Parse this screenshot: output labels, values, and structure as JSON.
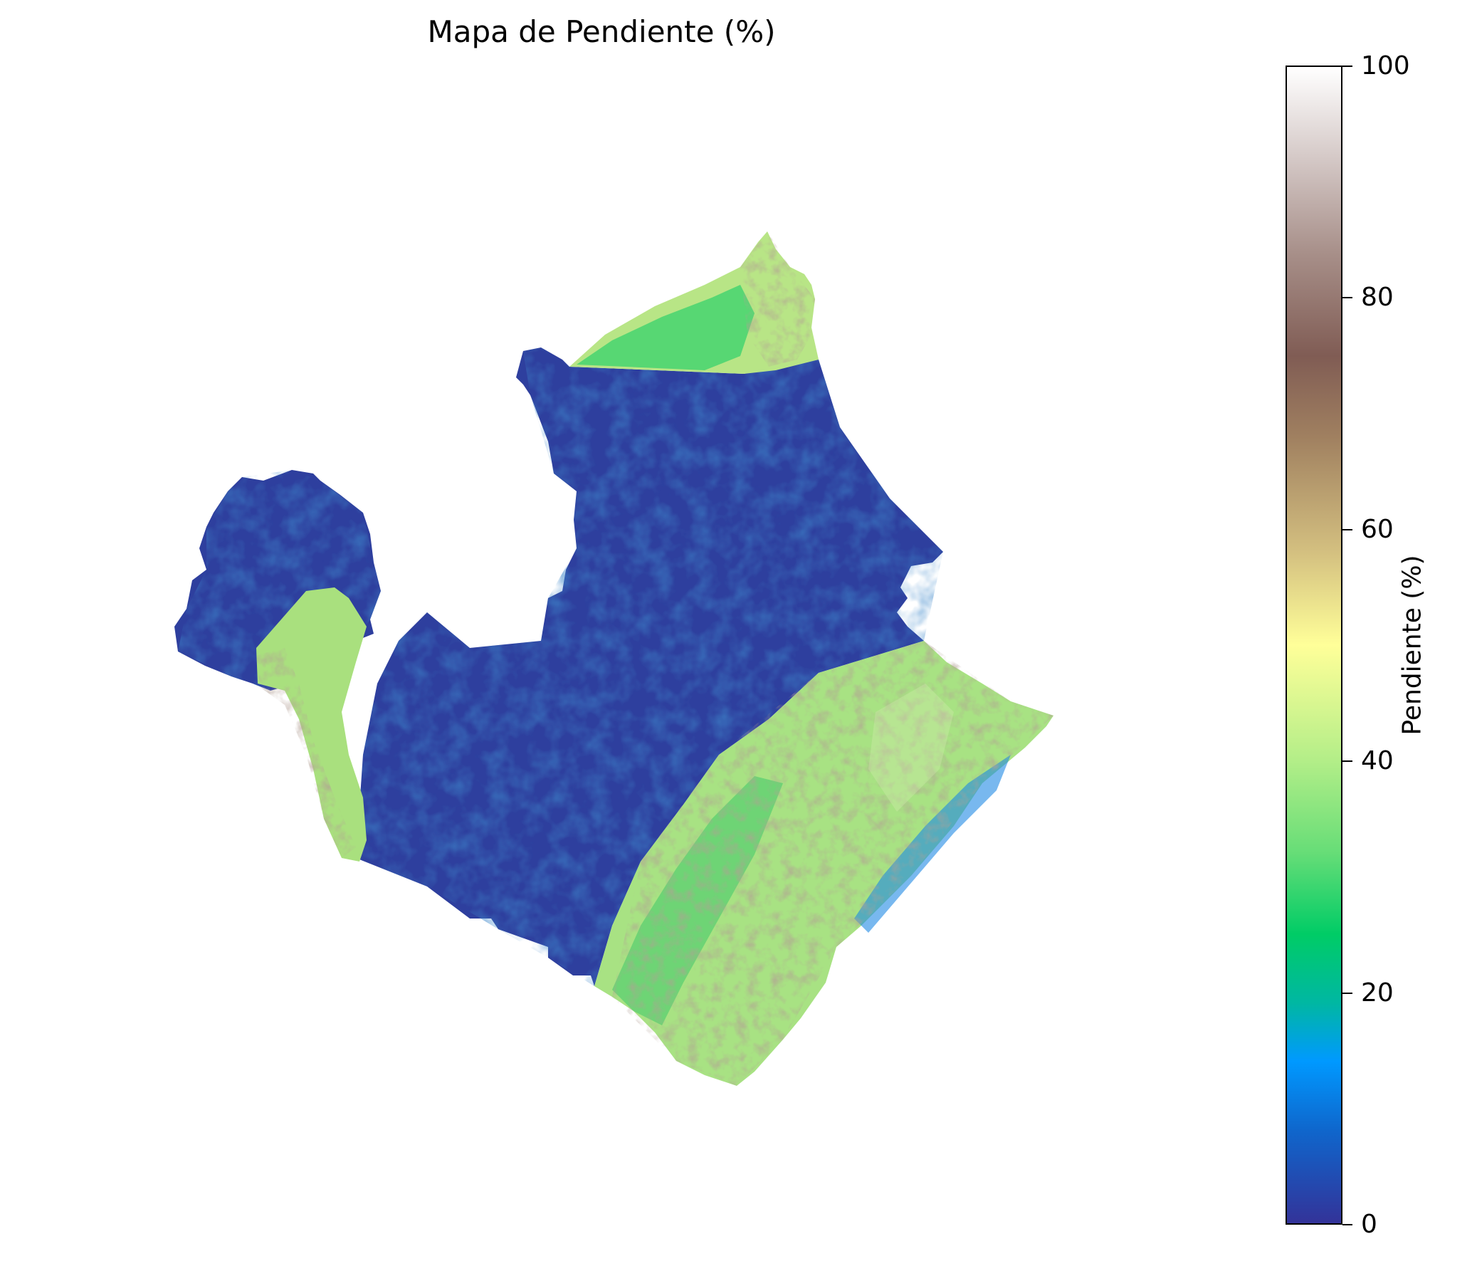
{
  "title": "Mapa de Pendiente (%)",
  "colorbar": {
    "label": "Pendiente (%)",
    "min": 0,
    "max": 100,
    "ticks": [
      "0",
      "20",
      "40",
      "60",
      "80",
      "100"
    ],
    "colormap": "terrain",
    "colors": [
      "#333399",
      "#0099ff",
      "#00cc66",
      "#ffff99",
      "#805c54",
      "#ffffff"
    ]
  },
  "map": {
    "legend_placement": "right",
    "axes": "off"
  }
}
